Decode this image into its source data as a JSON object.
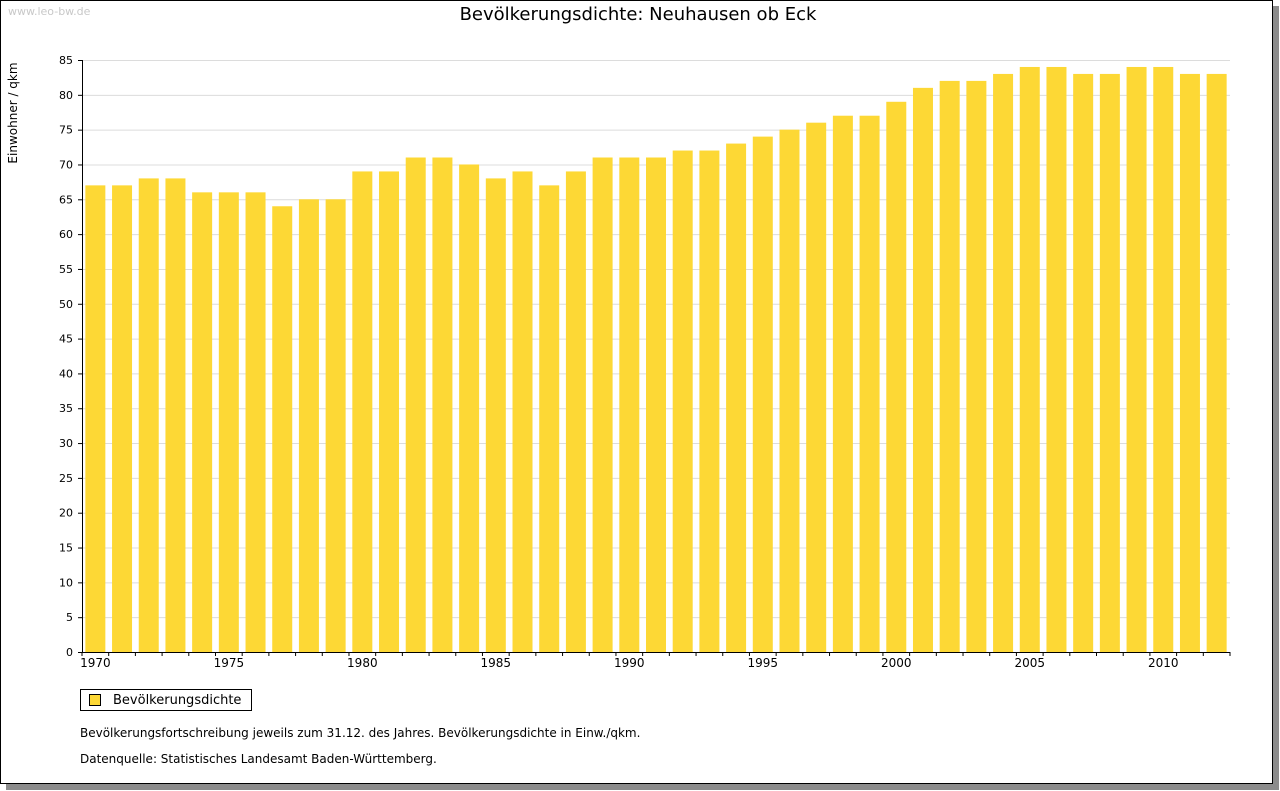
{
  "watermark": "www.leo-bw.de",
  "chart_data": {
    "type": "bar",
    "title": "Bevölkerungsdichte: Neuhausen ob Eck",
    "xlabel": "",
    "ylabel": "Einwohner / qkm",
    "ylim": [
      0,
      85
    ],
    "yticks": [
      0,
      5,
      10,
      15,
      20,
      25,
      30,
      35,
      40,
      45,
      50,
      55,
      60,
      65,
      70,
      75,
      80,
      85
    ],
    "xtick_labels": [
      "1970",
      "1975",
      "1980",
      "1985",
      "1990",
      "1995",
      "2000",
      "2005",
      "2010"
    ],
    "grid": true,
    "categories": [
      "1970",
      "1971",
      "1972",
      "1973",
      "1974",
      "1975",
      "1976",
      "1977",
      "1978",
      "1979",
      "1980",
      "1981",
      "1982",
      "1983",
      "1984",
      "1985",
      "1986",
      "1987",
      "1988",
      "1989",
      "1990",
      "1991",
      "1992",
      "1993",
      "1994",
      "1995",
      "1996",
      "1997",
      "1998",
      "1999",
      "2000",
      "2001",
      "2002",
      "2003",
      "2004",
      "2005",
      "2006",
      "2007",
      "2008",
      "2009",
      "2010",
      "2011",
      "2012"
    ],
    "series": [
      {
        "name": "Bevölkerungsdichte",
        "color": "#fdd835",
        "values": [
          67,
          67,
          68,
          68,
          66,
          66,
          66,
          64,
          65,
          65,
          69,
          69,
          71,
          71,
          70,
          68,
          69,
          67,
          69,
          71,
          71,
          71,
          72,
          72,
          73,
          74,
          75,
          76,
          77,
          77,
          79,
          81,
          82,
          82,
          83,
          84,
          84,
          83,
          83,
          84,
          84,
          83,
          83
        ]
      }
    ]
  },
  "legend": {
    "label": "Bevölkerungsdichte"
  },
  "notes": {
    "line1": "Bevölkerungsfortschreibung jeweils zum 31.12. des Jahres. Bevölkerungsdichte in Einw./qkm.",
    "line2": "Datenquelle: Statistisches Landesamt Baden-Württemberg."
  }
}
